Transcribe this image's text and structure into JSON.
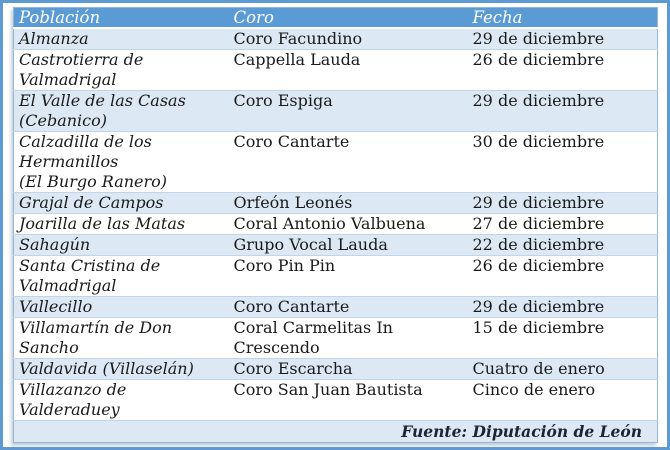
{
  "table": {
    "columns": [
      "Población",
      "Coro",
      "Fecha"
    ],
    "rows": [
      {
        "poblacion": "Almanza",
        "coro": "Coro Facundino",
        "fecha": "29 de diciembre"
      },
      {
        "poblacion": "Castrotierra de\nValmadrigal",
        "coro": "Cappella Lauda",
        "fecha": "26 de diciembre"
      },
      {
        "poblacion": "El Valle de las Casas\n(Cebanico)",
        "coro": "Coro Espiga",
        "fecha": "29 de diciembre"
      },
      {
        "poblacion": "Calzadilla de los\nHermanillos\n(El Burgo Ranero)",
        "coro": "Coro Cantarte",
        "fecha": "30 de diciembre"
      },
      {
        "poblacion": "Grajal de Campos",
        "coro": "Orfeón Leonés",
        "fecha": "29 de diciembre"
      },
      {
        "poblacion": "Joarilla de las Matas",
        "coro": "Coral Antonio Valbuena",
        "fecha": "27 de diciembre"
      },
      {
        "poblacion": "Sahagún",
        "coro": "Grupo Vocal Lauda",
        "fecha": "22 de diciembre"
      },
      {
        "poblacion": "Santa Cristina de\nValmadrigal",
        "coro": "Coro Pin Pin",
        "fecha": "26 de diciembre"
      },
      {
        "poblacion": "Vallecillo",
        "coro": "Coro Cantarte",
        "fecha": "29 de diciembre"
      },
      {
        "poblacion": "Villamartín de Don\nSancho",
        "coro": "Coral Carmelitas In\nCrescendo",
        "fecha": "15 de diciembre"
      },
      {
        "poblacion": "Valdavida (Villaselán)",
        "coro": "Coro Escarcha",
        "fecha": "Cuatro de enero"
      },
      {
        "poblacion": "Villazanzo de\nValderaduey",
        "coro": "Coro San Juan Bautista",
        "fecha": "Cinco de enero"
      }
    ],
    "source": "Fuente: Diputación de León"
  },
  "colors": {
    "header_bg": "#5b9bd5",
    "header_text": "#ffffff",
    "shaded_row_bg": "#dce9f5",
    "frame_border": "#5e9ad2",
    "body_text": "#1a1a1a"
  },
  "chart_data": {
    "type": "table",
    "columns": [
      "Población",
      "Coro",
      "Fecha"
    ],
    "rows": [
      [
        "Almanza",
        "Coro Facundino",
        "29 de diciembre"
      ],
      [
        "Castrotierra de Valmadrigal",
        "Cappella Lauda",
        "26 de diciembre"
      ],
      [
        "El Valle de las Casas (Cebanico)",
        "Coro Espiga",
        "29 de diciembre"
      ],
      [
        "Calzadilla de los Hermanillos (El Burgo Ranero)",
        "Coro Cantarte",
        "30 de diciembre"
      ],
      [
        "Grajal de Campos",
        "Orfeón Leonés",
        "29 de diciembre"
      ],
      [
        "Joarilla de las Matas",
        "Coral Antonio Valbuena",
        "27 de diciembre"
      ],
      [
        "Sahagún",
        "Grupo Vocal Lauda",
        "22 de diciembre"
      ],
      [
        "Santa Cristina de Valmadrigal",
        "Coro Pin Pin",
        "26 de diciembre"
      ],
      [
        "Vallecillo",
        "Coro Cantarte",
        "29 de diciembre"
      ],
      [
        "Villamartín de Don Sancho",
        "Coral Carmelitas In Crescendo",
        "15 de diciembre"
      ],
      [
        "Valdavida (Villaselán)",
        "Coro Escarcha",
        "Cuatro de enero"
      ],
      [
        "Villazanzo de Valderaduey",
        "Coro San Juan Bautista",
        "Cinco de enero"
      ]
    ],
    "source": "Fuente: Diputación de León",
    "layout": {
      "header_position": "top",
      "zebra_striping": true,
      "gridlines": "horizontal-only"
    }
  }
}
